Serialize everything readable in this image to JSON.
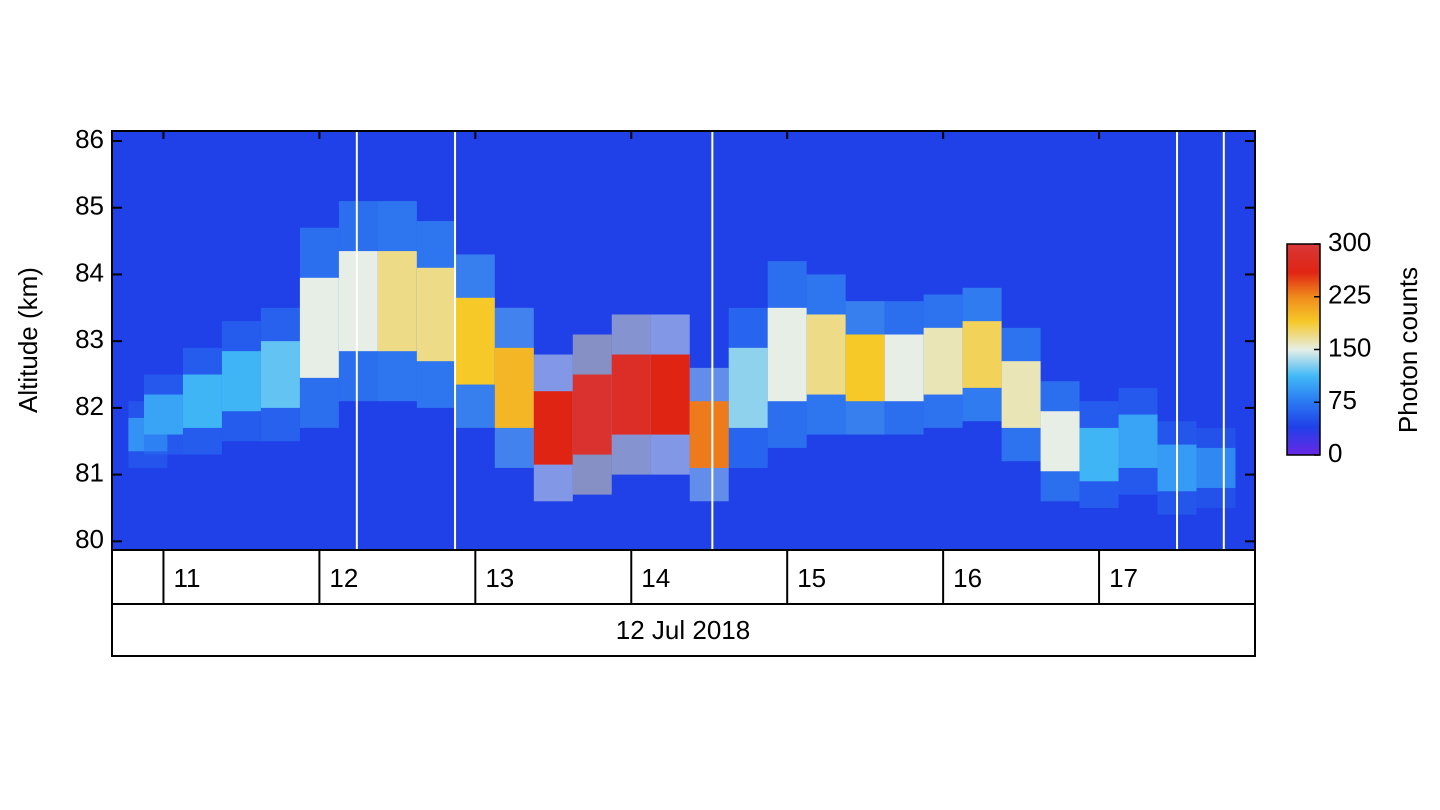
{
  "chart_data": {
    "type": "heatmap",
    "x_label": "12 Jul 2018",
    "y_label": "Altitude (km)",
    "colorbar_label": "Photon counts",
    "xlim": [
      10.67,
      18.0
    ],
    "xticks": [
      11,
      12,
      13,
      14,
      15,
      16,
      17
    ],
    "ylim": [
      79.87,
      86.15
    ],
    "yticks": [
      80,
      81,
      82,
      83,
      84,
      85,
      86
    ],
    "clim": [
      0,
      300
    ],
    "cticks": [
      0,
      75,
      150,
      225,
      300
    ],
    "colormap": [
      {
        "value": 0,
        "color": "#6a28e6"
      },
      {
        "value": 40,
        "color": "#2040e8"
      },
      {
        "value": 75,
        "color": "#2a78f2"
      },
      {
        "value": 112,
        "color": "#40b8f6"
      },
      {
        "value": 150,
        "color": "#e6eee6"
      },
      {
        "value": 190,
        "color": "#f6c828"
      },
      {
        "value": 225,
        "color": "#f08a1c"
      },
      {
        "value": 260,
        "color": "#e02414"
      },
      {
        "value": 300,
        "color": "#d83838"
      }
    ],
    "background": 40,
    "bin_width": 0.25,
    "layer": {
      "x": [
        10.9,
        11.0,
        11.25,
        11.5,
        11.75,
        12.0,
        12.25,
        12.5,
        12.75,
        13.0,
        13.25,
        13.5,
        13.75,
        14.0,
        14.25,
        14.5,
        14.75,
        15.0,
        15.25,
        15.5,
        15.75,
        16.0,
        16.25,
        16.5,
        16.75,
        17.0,
        17.25,
        17.5,
        17.75
      ],
      "altitude": [
        81.6,
        81.9,
        82.1,
        82.4,
        82.5,
        83.2,
        83.6,
        83.6,
        83.4,
        83.0,
        82.3,
        81.7,
        81.9,
        82.2,
        82.2,
        81.6,
        82.3,
        82.8,
        82.8,
        82.6,
        82.6,
        82.7,
        82.8,
        82.2,
        81.5,
        81.3,
        81.5,
        81.1,
        81.1
      ],
      "width": [
        0.5,
        0.6,
        0.8,
        0.9,
        1.0,
        1.5,
        1.5,
        1.5,
        1.4,
        1.3,
        1.2,
        1.1,
        1.2,
        1.2,
        1.2,
        1.0,
        1.2,
        1.4,
        1.2,
        1.0,
        1.0,
        1.0,
        1.0,
        1.0,
        0.9,
        0.8,
        0.8,
        0.7,
        0.6
      ],
      "counts": [
        90,
        100,
        110,
        110,
        120,
        150,
        150,
        170,
        170,
        190,
        200,
        260,
        290,
        280,
        260,
        230,
        130,
        150,
        170,
        190,
        150,
        160,
        180,
        160,
        150,
        110,
        100,
        95,
        85
      ]
    },
    "gaps": [
      12.24,
      12.87,
      14.52,
      17.5,
      17.8
    ]
  }
}
